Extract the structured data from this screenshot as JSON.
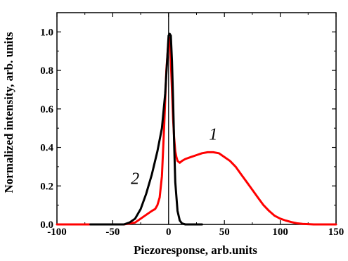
{
  "chart_data": {
    "type": "line",
    "title": "",
    "xlabel": "Piezoresponse, arb.units",
    "ylabel": "Normalized intensity, arb. units",
    "xlim": [
      -100,
      150
    ],
    "ylim": [
      0.0,
      1.1
    ],
    "xticks": [
      "-100",
      "-50",
      "0",
      "50",
      "100",
      "150"
    ],
    "yticks": [
      "0.0",
      "0.2",
      "0.4",
      "0.6",
      "0.8",
      "1.0"
    ],
    "grid": false,
    "vertical_line_x": 0,
    "series": [
      {
        "label": "1",
        "color": "#ff0000",
        "x": [
          -100,
          -40,
          -30,
          -25,
          -20,
          -15,
          -12,
          -10,
          -8,
          -6,
          -4,
          -2,
          0,
          1,
          2,
          3,
          4,
          5,
          6,
          7,
          8,
          10,
          12,
          15,
          20,
          25,
          30,
          35,
          40,
          45,
          50,
          55,
          60,
          65,
          70,
          75,
          80,
          85,
          90,
          95,
          100,
          105,
          110,
          115,
          120,
          130,
          140,
          150
        ],
        "y": [
          0.0,
          0.0,
          0.01,
          0.03,
          0.05,
          0.07,
          0.08,
          0.1,
          0.14,
          0.25,
          0.5,
          0.8,
          0.96,
          0.97,
          0.85,
          0.7,
          0.55,
          0.45,
          0.38,
          0.35,
          0.33,
          0.32,
          0.33,
          0.34,
          0.35,
          0.36,
          0.37,
          0.375,
          0.375,
          0.37,
          0.35,
          0.33,
          0.3,
          0.26,
          0.22,
          0.18,
          0.14,
          0.1,
          0.07,
          0.045,
          0.03,
          0.02,
          0.012,
          0.006,
          0.003,
          0.0,
          0.0,
          0.0
        ]
      },
      {
        "label": "2",
        "color": "#000000",
        "x": [
          -70,
          -40,
          -35,
          -30,
          -25,
          -20,
          -15,
          -10,
          -6,
          -3,
          -1,
          0,
          1,
          2,
          3,
          4,
          5,
          6,
          8,
          10,
          12,
          15,
          20,
          30
        ],
        "y": [
          0.0,
          0.0,
          0.01,
          0.03,
          0.08,
          0.16,
          0.26,
          0.38,
          0.5,
          0.68,
          0.88,
          0.98,
          0.99,
          0.98,
          0.85,
          0.65,
          0.42,
          0.22,
          0.07,
          0.02,
          0.005,
          0.0,
          0.0,
          0.0
        ]
      }
    ],
    "annotations": [
      {
        "text": "1",
        "x": 40,
        "y": 0.44
      },
      {
        "text": "2",
        "x": -30,
        "y": 0.21
      }
    ]
  }
}
